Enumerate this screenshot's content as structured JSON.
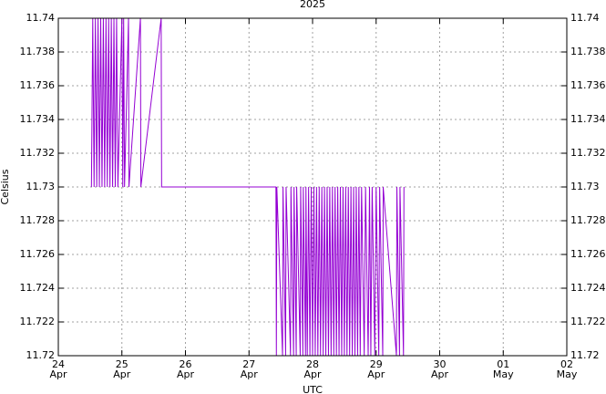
{
  "chart_data": {
    "type": "line",
    "title": "2025",
    "xlabel": "UTC",
    "ylabel": "Celsius",
    "x": [
      "2025-04-24 12:30",
      "2025-04-24 13:00",
      "2025-04-24 13:30",
      "2025-04-24 14:00",
      "2025-04-24 14:30",
      "2025-04-24 15:00",
      "2025-04-24 15:30",
      "2025-04-24 16:00",
      "2025-04-24 16:30",
      "2025-04-24 17:00",
      "2025-04-24 17:30",
      "2025-04-24 18:00",
      "2025-04-24 18:30",
      "2025-04-24 19:00",
      "2025-04-24 19:30",
      "2025-04-24 20:00",
      "2025-04-24 20:30",
      "2025-04-24 21:00",
      "2025-04-24 21:30",
      "2025-04-24 22:00",
      "2025-04-24 22:30",
      "2025-04-25 00:00",
      "2025-04-25 00:20",
      "2025-04-25 00:40",
      "2025-04-25 01:00",
      "2025-04-25 02:30",
      "2025-04-25 02:40",
      "2025-04-25 07:00",
      "2025-04-25 07:10",
      "2025-04-25 14:50",
      "2025-04-25 15:00",
      "2025-04-27 10:10",
      "2025-04-27 10:20",
      "2025-04-27 10:30",
      "2025-04-27 12:40",
      "2025-04-27 12:50",
      "2025-04-27 13:50",
      "2025-04-27 14:00",
      "2025-04-27 15:40",
      "2025-04-27 15:50",
      "2025-04-27 16:50",
      "2025-04-27 17:00",
      "2025-04-27 17:50",
      "2025-04-27 18:00",
      "2025-04-27 19:20",
      "2025-04-27 19:30",
      "2025-04-27 20:20",
      "2025-04-27 20:30",
      "2025-04-27 21:20",
      "2025-04-27 21:30",
      "2025-04-27 22:00",
      "2025-04-27 22:30",
      "2025-04-27 23:00",
      "2025-04-27 23:30",
      "2025-04-28 00:00",
      "2025-04-28 00:30",
      "2025-04-28 01:00",
      "2025-04-28 01:30",
      "2025-04-28 02:00",
      "2025-04-28 02:30",
      "2025-04-28 03:00",
      "2025-04-28 03:30",
      "2025-04-28 04:00",
      "2025-04-28 04:30",
      "2025-04-28 05:00",
      "2025-04-28 05:30",
      "2025-04-28 06:00",
      "2025-04-28 06:30",
      "2025-04-28 07:00",
      "2025-04-28 07:30",
      "2025-04-28 08:00",
      "2025-04-28 08:30",
      "2025-04-28 09:00",
      "2025-04-28 09:30",
      "2025-04-28 10:00",
      "2025-04-28 10:30",
      "2025-04-28 11:00",
      "2025-04-28 11:30",
      "2025-04-28 12:00",
      "2025-04-28 12:30",
      "2025-04-28 13:00",
      "2025-04-28 13:30",
      "2025-04-28 14:00",
      "2025-04-28 14:30",
      "2025-04-28 15:00",
      "2025-04-28 15:30",
      "2025-04-28 16:00",
      "2025-04-28 16:30",
      "2025-04-28 17:00",
      "2025-04-28 17:30",
      "2025-04-28 18:00",
      "2025-04-28 18:30",
      "2025-04-28 19:30",
      "2025-04-28 20:00",
      "2025-04-28 21:00",
      "2025-04-28 21:30",
      "2025-04-28 22:00",
      "2025-04-28 22:30",
      "2025-04-28 23:30",
      "2025-04-29 00:00",
      "2025-04-29 01:00",
      "2025-04-29 01:20",
      "2025-04-29 02:30",
      "2025-04-29 02:40",
      "2025-04-29 07:40",
      "2025-04-29 07:50",
      "2025-04-29 08:50",
      "2025-04-29 09:00",
      "2025-04-29 10:20",
      "2025-04-29 10:30"
    ],
    "values": [
      11.73,
      11.74,
      11.73,
      11.74,
      11.73,
      11.74,
      11.73,
      11.74,
      11.73,
      11.74,
      11.73,
      11.74,
      11.73,
      11.74,
      11.73,
      11.74,
      11.73,
      11.74,
      11.73,
      11.74,
      11.73,
      11.74,
      11.73,
      11.74,
      11.73,
      11.74,
      11.73,
      11.74,
      11.73,
      11.74,
      11.73,
      11.73,
      11.72,
      11.73,
      11.72,
      11.73,
      11.72,
      11.73,
      11.72,
      11.73,
      11.72,
      11.73,
      11.72,
      11.73,
      11.72,
      11.73,
      11.72,
      11.73,
      11.72,
      11.73,
      11.72,
      11.73,
      11.72,
      11.73,
      11.72,
      11.73,
      11.72,
      11.73,
      11.72,
      11.73,
      11.72,
      11.73,
      11.72,
      11.73,
      11.72,
      11.73,
      11.72,
      11.73,
      11.72,
      11.73,
      11.72,
      11.73,
      11.72,
      11.73,
      11.72,
      11.73,
      11.72,
      11.73,
      11.72,
      11.73,
      11.72,
      11.73,
      11.72,
      11.73,
      11.72,
      11.73,
      11.72,
      11.73,
      11.72,
      11.73,
      11.72,
      11.73,
      11.72,
      11.73,
      11.72,
      11.73,
      11.72,
      11.73,
      11.72,
      11.73,
      11.72,
      11.73,
      11.72,
      11.73,
      11.72,
      11.73,
      11.72,
      11.73,
      11.72,
      11.73
    ],
    "color": "#9400d3",
    "xlim": [
      "2025-04-24 00:00",
      "2025-05-02 00:00"
    ],
    "xticks": [
      {
        "value": "2025-04-24 00:00",
        "label": "24\nApr"
      },
      {
        "value": "2025-04-25 00:00",
        "label": "25\nApr"
      },
      {
        "value": "2025-04-26 00:00",
        "label": "26\nApr"
      },
      {
        "value": "2025-04-27 00:00",
        "label": "27\nApr"
      },
      {
        "value": "2025-04-28 00:00",
        "label": "28\nApr"
      },
      {
        "value": "2025-04-29 00:00",
        "label": "29\nApr"
      },
      {
        "value": "2025-04-30 00:00",
        "label": "30\nApr"
      },
      {
        "value": "2025-05-01 00:00",
        "label": "01\nMay"
      },
      {
        "value": "2025-05-02 00:00",
        "label": "02\nMay"
      }
    ],
    "ylim": [
      11.72,
      11.74
    ],
    "yticks": [
      11.72,
      11.722,
      11.724,
      11.726,
      11.728,
      11.73,
      11.732,
      11.734,
      11.736,
      11.738,
      11.74
    ],
    "grid": true
  }
}
